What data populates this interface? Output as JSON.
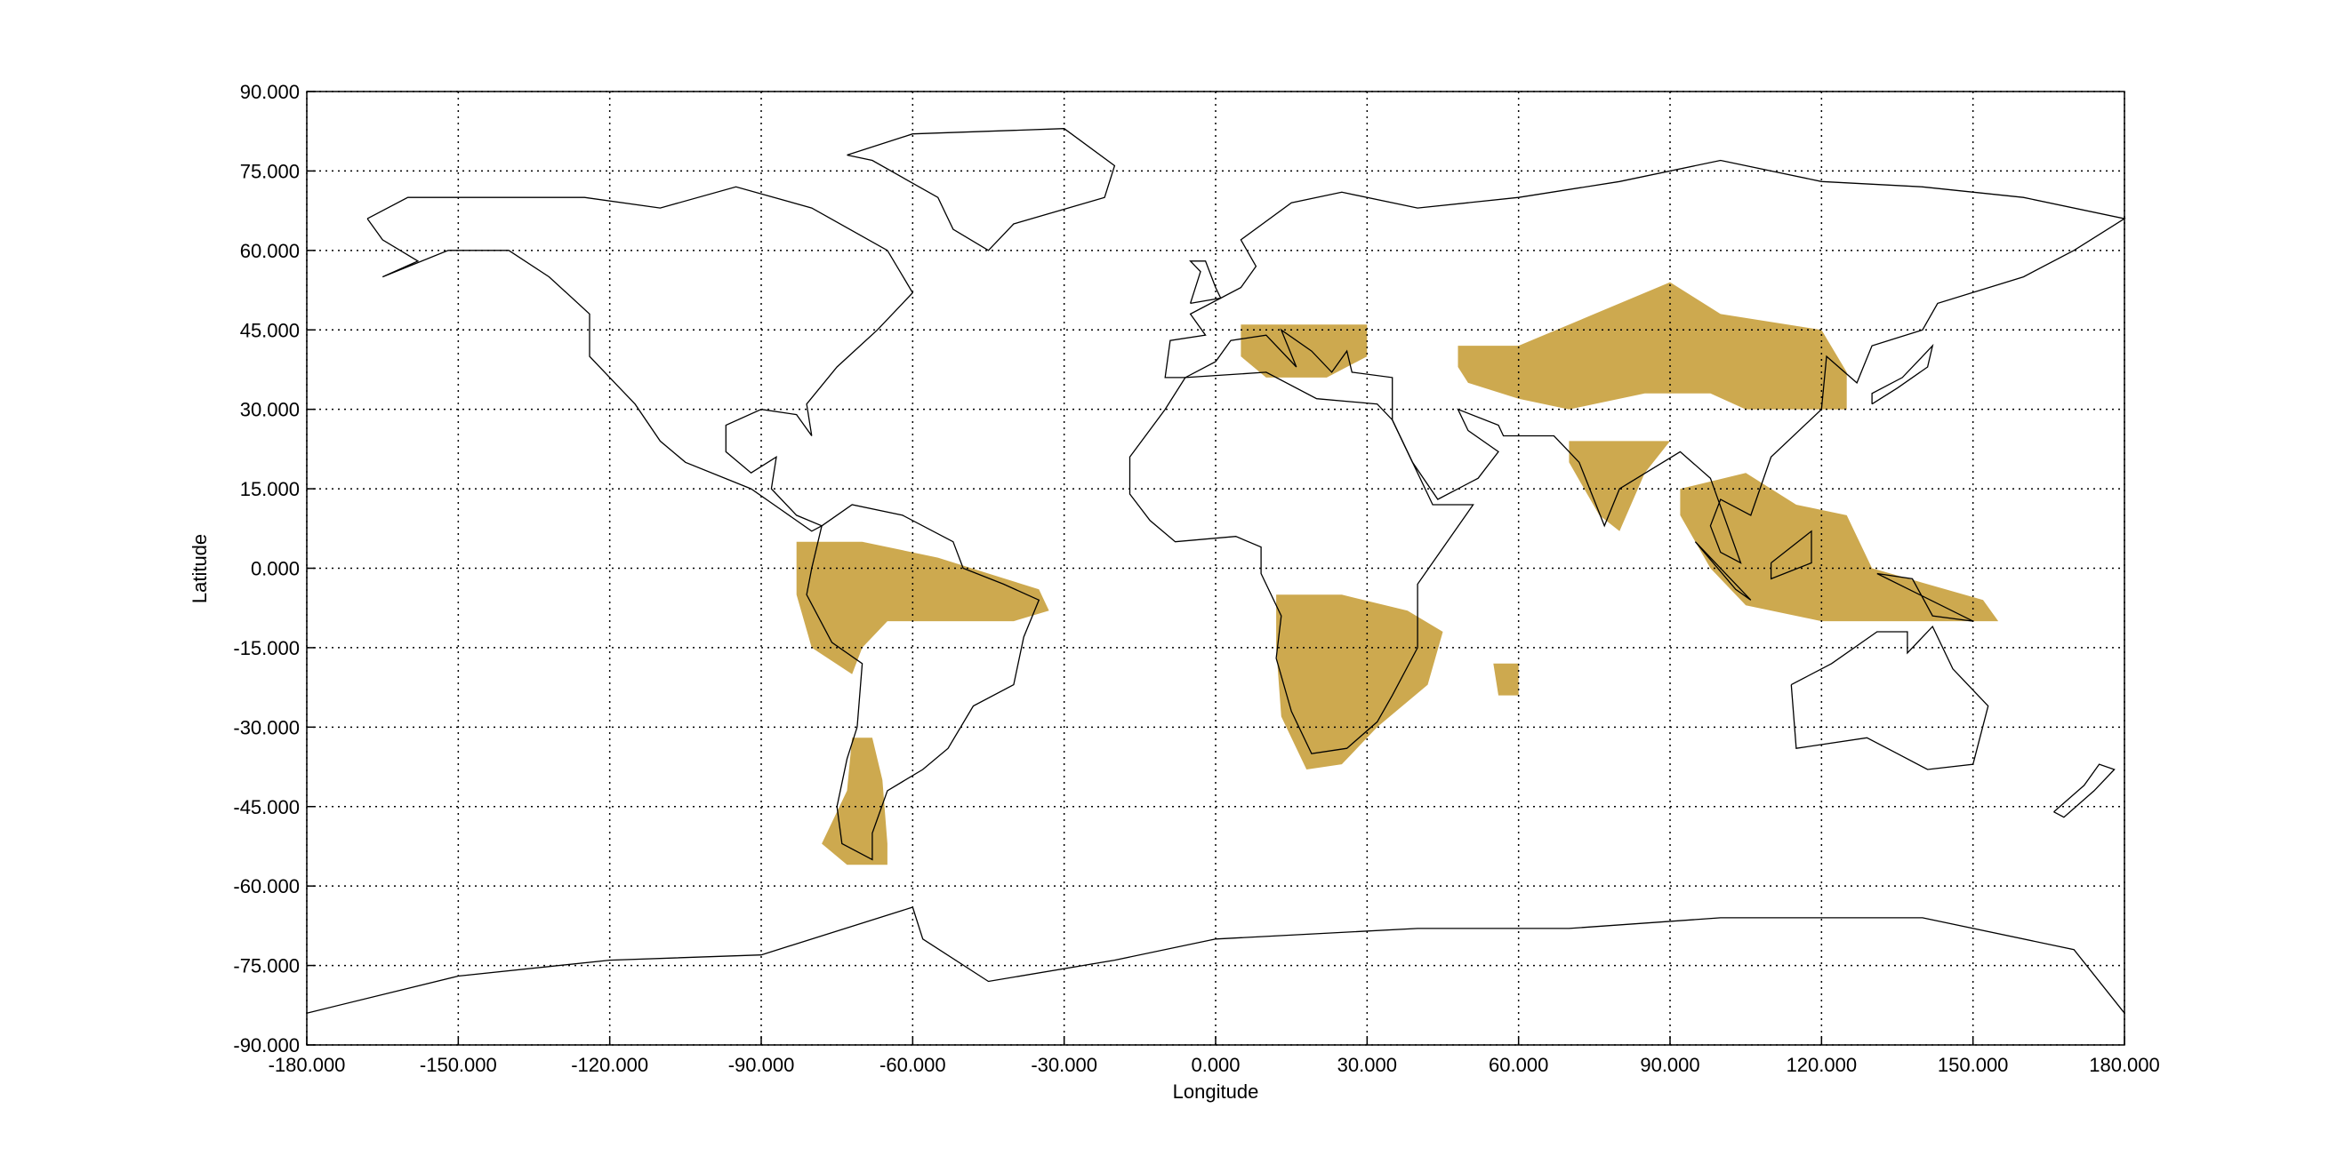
{
  "chart_data": {
    "type": "map",
    "xlabel": "Longitude",
    "ylabel": "Latitude",
    "xlim": [
      -180,
      180
    ],
    "ylim": [
      -90,
      90
    ],
    "xticks": [
      {
        "value": -180,
        "label": "-180.000"
      },
      {
        "value": -150,
        "label": "-150.000"
      },
      {
        "value": -120,
        "label": "-120.000"
      },
      {
        "value": -90,
        "label": "-90.000"
      },
      {
        "value": -60,
        "label": "-60.000"
      },
      {
        "value": -30,
        "label": "-30.000"
      },
      {
        "value": 0,
        "label": "0.000"
      },
      {
        "value": 30,
        "label": "30.000"
      },
      {
        "value": 60,
        "label": "60.000"
      },
      {
        "value": 90,
        "label": "90.000"
      },
      {
        "value": 120,
        "label": "120.000"
      },
      {
        "value": 150,
        "label": "150.000"
      },
      {
        "value": 180,
        "label": "180.000"
      }
    ],
    "yticks": [
      {
        "value": 90,
        "label": "90.000"
      },
      {
        "value": 75,
        "label": "75.000"
      },
      {
        "value": 60,
        "label": "60.000"
      },
      {
        "value": 45,
        "label": "45.000"
      },
      {
        "value": 30,
        "label": "30.000"
      },
      {
        "value": 15,
        "label": "15.000"
      },
      {
        "value": 0,
        "label": "0.000"
      },
      {
        "value": -15,
        "label": "-15.000"
      },
      {
        "value": -30,
        "label": "-30.000"
      },
      {
        "value": -45,
        "label": "-45.000"
      },
      {
        "value": -60,
        "label": "-60.000"
      },
      {
        "value": -75,
        "label": "-75.000"
      },
      {
        "value": -90,
        "label": "-90.000"
      }
    ],
    "grid": true,
    "color": "#c49a30"
  }
}
